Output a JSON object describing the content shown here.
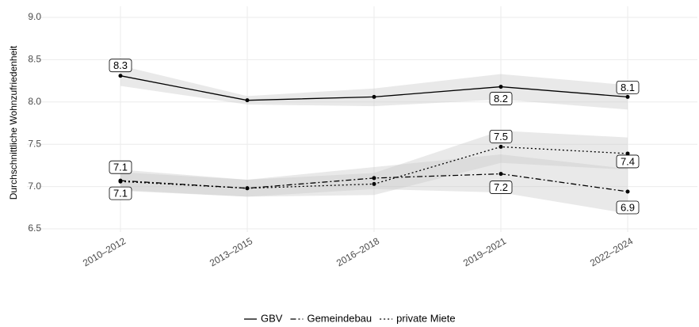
{
  "chart_data": {
    "type": "line",
    "ylabel": "Durchschnittliche Wohnzufriedenheit",
    "categories": [
      "2010–2012",
      "2013–2015",
      "2016–2018",
      "2019–2021",
      "2022–2024"
    ],
    "series": [
      {
        "name": "GBV",
        "color": "#000000",
        "dash": "solid",
        "values": [
          8.31,
          8.02,
          8.06,
          8.18,
          8.06
        ],
        "value_labels": [
          "8.3",
          null,
          null,
          "8.2",
          "8.1"
        ],
        "lower": [
          8.19,
          7.97,
          7.95,
          8.03,
          7.91
        ],
        "upper": [
          8.43,
          8.07,
          8.16,
          8.33,
          8.2
        ]
      },
      {
        "name": "Gemeindebau",
        "color": "#000000",
        "dash": "dashdot",
        "values": [
          7.07,
          6.98,
          7.1,
          7.15,
          6.94
        ],
        "value_labels": [
          "7.1",
          null,
          null,
          "7.2",
          "6.9"
        ],
        "lower": [
          6.95,
          6.88,
          6.97,
          6.93,
          6.68
        ],
        "upper": [
          7.2,
          7.08,
          7.23,
          7.38,
          7.21
        ]
      },
      {
        "name": "private Miete",
        "color": "#000000",
        "dash": "dotted",
        "values": [
          7.06,
          6.98,
          7.03,
          7.47,
          7.39
        ],
        "value_labels": [
          "7.1",
          null,
          null,
          "7.5",
          "7.4"
        ],
        "lower": [
          6.96,
          6.88,
          6.9,
          7.28,
          7.2
        ],
        "upper": [
          7.17,
          7.08,
          7.16,
          7.66,
          7.58
        ]
      }
    ],
    "ylim": [
      6.5,
      9.0
    ],
    "yticks": [
      6.5,
      {
        "value": 7.0,
        "label": "7.0"
      },
      7.5,
      {
        "value": 8.0,
        "label": "8.0"
      },
      8.5,
      {
        "value": 9.0,
        "label": "9.0"
      }
    ],
    "grid": true,
    "legend": "bottom"
  }
}
